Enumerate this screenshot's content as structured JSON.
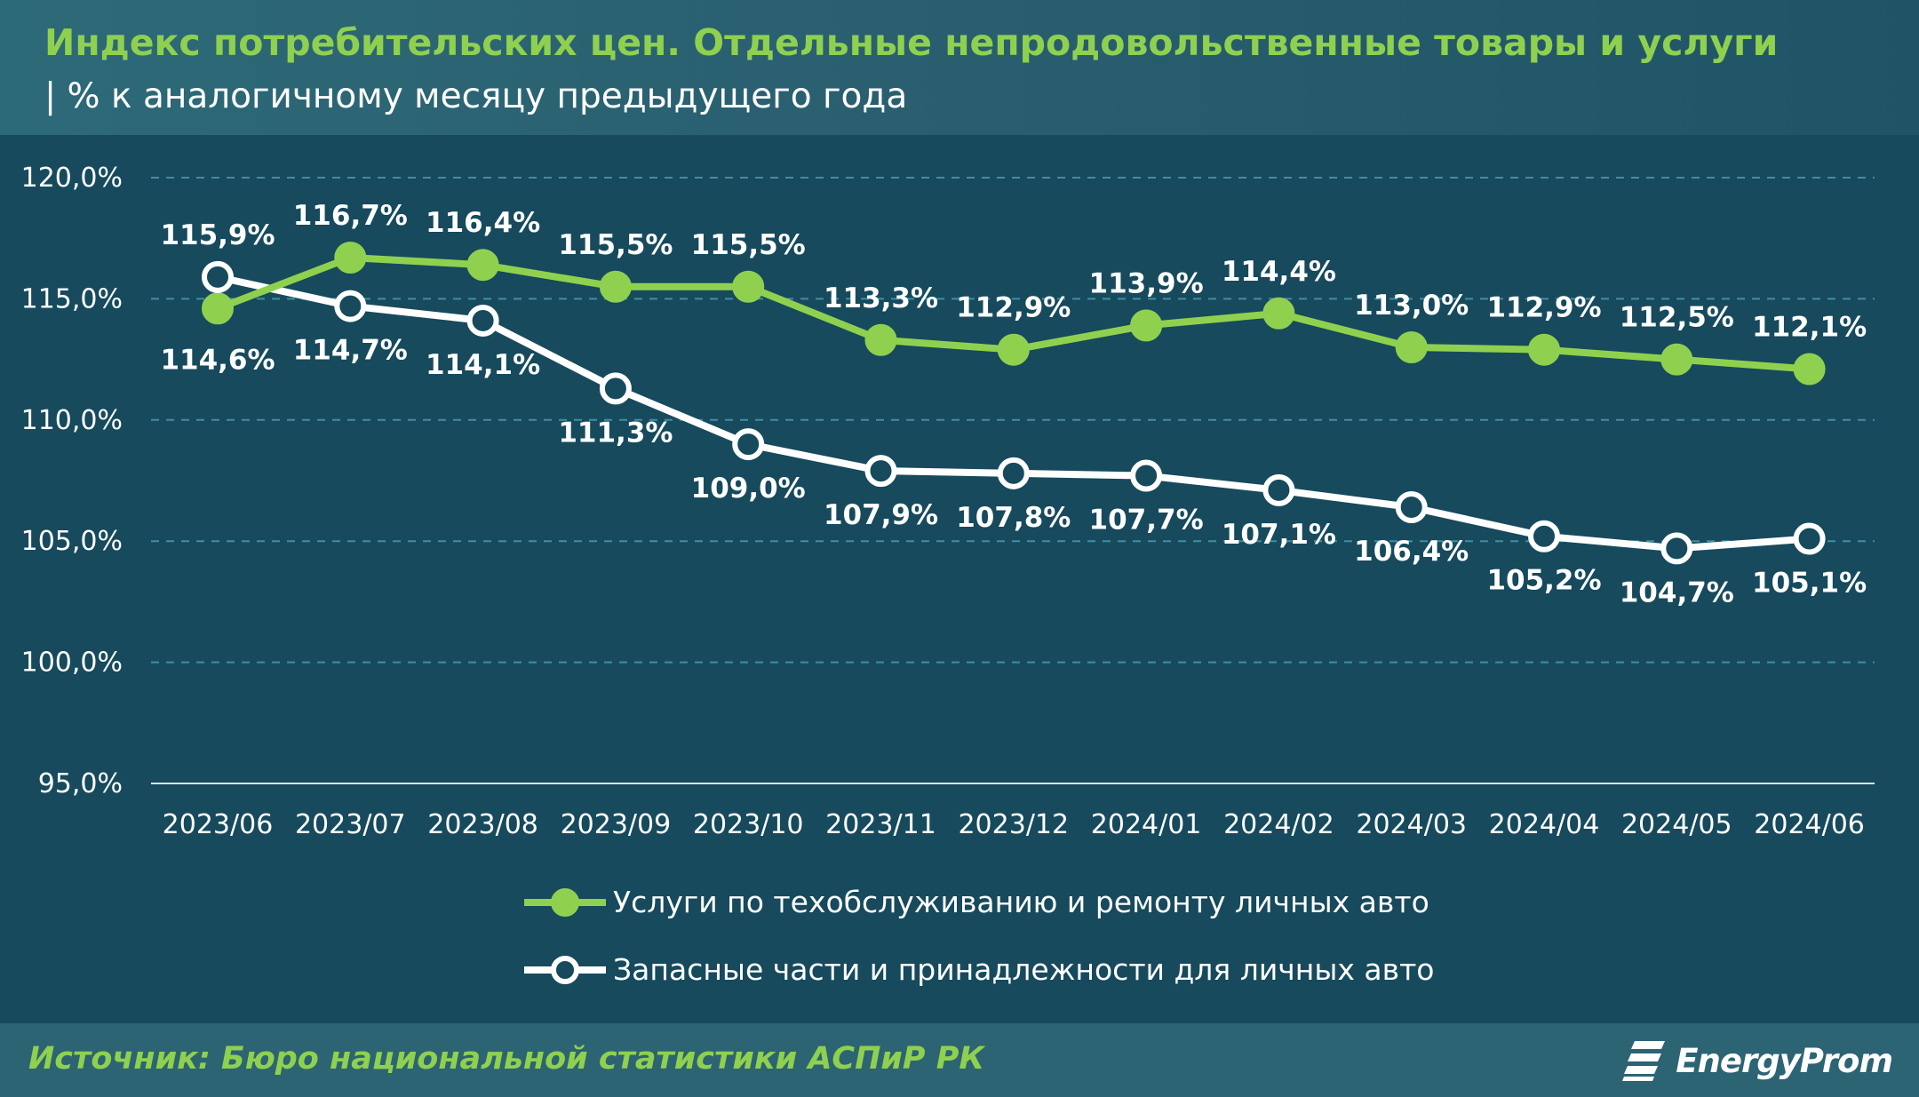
{
  "header": {
    "title": "Индекс потребительских цен. Отдельные непродовольственные товары и услуги",
    "subtitle": "| % к аналогичному месяцу предыдущего года"
  },
  "chart_data": {
    "type": "line",
    "x": [
      "2023/06",
      "2023/07",
      "2023/08",
      "2023/09",
      "2023/10",
      "2023/11",
      "2023/12",
      "2024/01",
      "2024/02",
      "2024/03",
      "2024/04",
      "2024/05",
      "2024/06"
    ],
    "ylim": [
      95,
      120
    ],
    "yticks": [
      {
        "value": 95,
        "label": "95,0%"
      },
      {
        "value": 100,
        "label": "100,0%"
      },
      {
        "value": 105,
        "label": "105,0%"
      },
      {
        "value": 110,
        "label": "110,0%"
      },
      {
        "value": 115,
        "label": "115,0%"
      },
      {
        "value": 120,
        "label": "120,0%"
      }
    ],
    "grid": true,
    "legend_position": "bottom",
    "series": [
      {
        "name": "Услуги по техобслуживанию и ремонту личных авто",
        "color": "#8fd14f",
        "marker_fill": "#8fd14f",
        "values": [
          114.6,
          116.7,
          116.4,
          115.5,
          115.5,
          113.3,
          112.9,
          113.9,
          114.4,
          113.0,
          112.9,
          112.5,
          112.1
        ],
        "labels": [
          "114,6%",
          "116,7%",
          "116,4%",
          "115,5%",
          "115,5%",
          "113,3%",
          "112,9%",
          "113,9%",
          "114,4%",
          "113,0%",
          "112,9%",
          "112,5%",
          "112,1%"
        ]
      },
      {
        "name": "Запасные части и принадлежности для личных авто",
        "color": "#ffffff",
        "marker_fill": "#164a5c",
        "values": [
          115.9,
          114.7,
          114.1,
          111.3,
          109.0,
          107.9,
          107.8,
          107.7,
          107.1,
          106.4,
          105.2,
          104.7,
          105.1
        ],
        "labels": [
          "115,9%",
          "114,7%",
          "114,1%",
          "111,3%",
          "109,0%",
          "107,9%",
          "107,8%",
          "107,7%",
          "107,1%",
          "106,4%",
          "105,2%",
          "104,7%",
          "105,1%"
        ]
      }
    ]
  },
  "footer": {
    "source": "Источник: Бюро национальной статистики АСПиР РК",
    "logo_text": "EnergyProm",
    "logo_icon": "energyprom-logo-icon"
  }
}
